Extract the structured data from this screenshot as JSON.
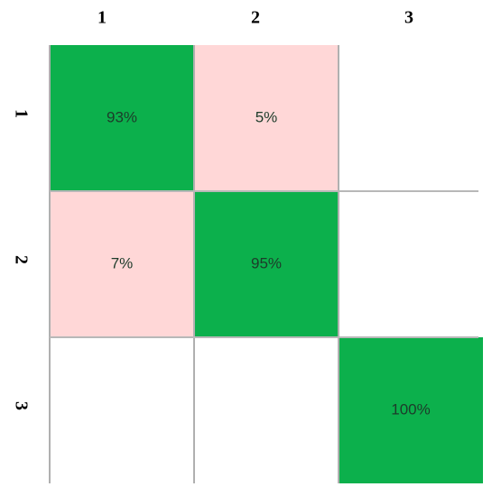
{
  "chart_data": {
    "type": "heatmap",
    "x_categories": [
      "1",
      "2",
      "3"
    ],
    "y_categories": [
      "1",
      "2",
      "3"
    ],
    "values": [
      [
        93,
        5,
        null
      ],
      [
        7,
        95,
        null
      ],
      [
        null,
        null,
        100
      ]
    ],
    "value_labels": [
      [
        "93%",
        "5%",
        null
      ],
      [
        "7%",
        "95%",
        null
      ],
      [
        null,
        null,
        "100%"
      ]
    ],
    "cell_colors": [
      [
        "#0cb04c",
        "#ffd7d7",
        null
      ],
      [
        "#ffd7d7",
        "#0cb04c",
        null
      ],
      [
        null,
        null,
        "#0cb04c"
      ]
    ]
  }
}
